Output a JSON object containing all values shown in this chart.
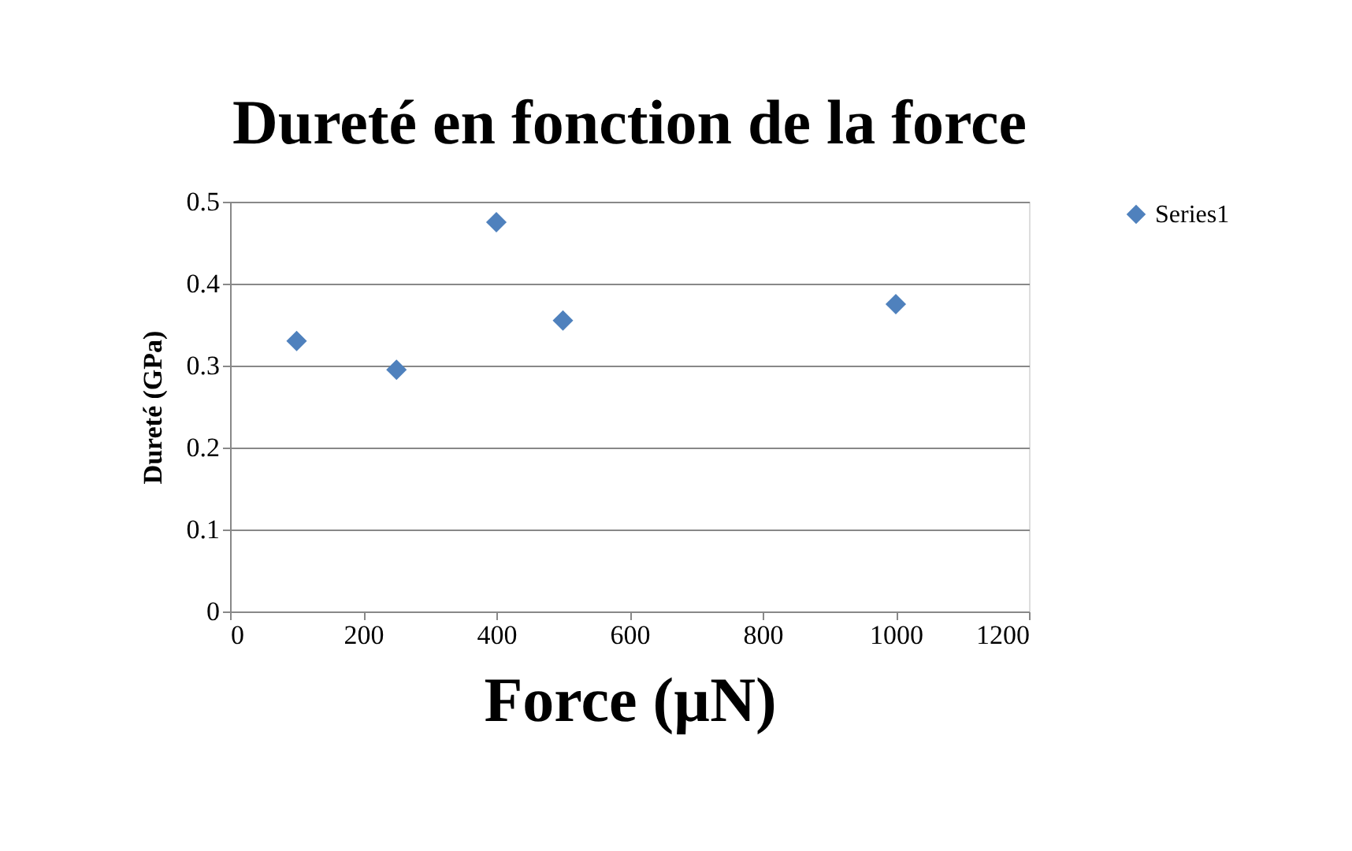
{
  "chart_data": {
    "type": "scatter",
    "title": "Dureté en fonction de la force",
    "xlabel": "Force (µN)",
    "ylabel": "Dureté (GPa)",
    "x": [
      100,
      250,
      400,
      500,
      1000
    ],
    "series": [
      {
        "name": "Series1",
        "color": "#4f81bd",
        "values": [
          0.33,
          0.295,
          0.475,
          0.355,
          0.375
        ]
      }
    ],
    "xlim": [
      0,
      1200
    ],
    "xticks": [
      0,
      200,
      400,
      600,
      800,
      1000,
      1200
    ],
    "ylim": [
      0,
      0.5
    ],
    "yticks": [
      0,
      0.1,
      0.2,
      0.3,
      0.4,
      0.5
    ],
    "grid": "y",
    "legend": "right",
    "marker": "diamond"
  }
}
